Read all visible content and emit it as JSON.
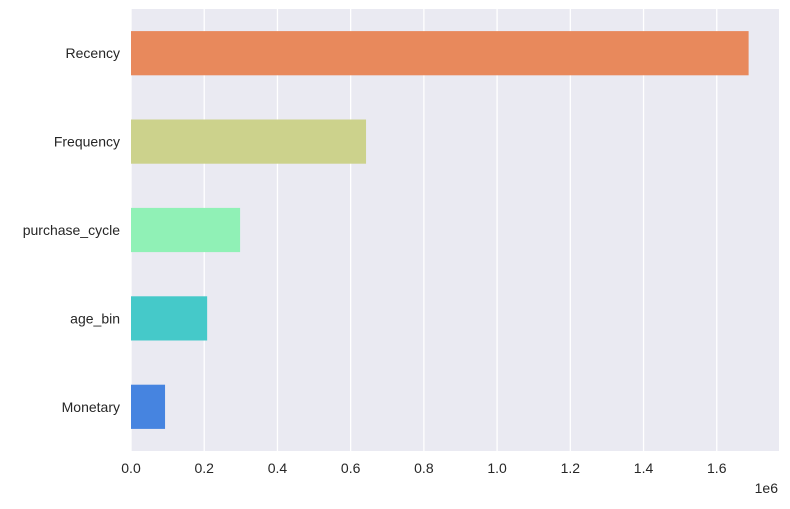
{
  "chart_data": {
    "type": "bar",
    "orientation": "horizontal",
    "title": "",
    "xlabel": "",
    "ylabel": "",
    "x_offset_label": "1e6",
    "categories": [
      "Recency",
      "Frequency",
      "purchase_cycle",
      "age_bin",
      "Monetary"
    ],
    "values": [
      1687000,
      642000,
      298000,
      208000,
      93000
    ],
    "colors": [
      "#E8895C",
      "#CCD28C",
      "#90F1B6",
      "#45C9C9",
      "#4684E0"
    ],
    "xlim": [
      0,
      1770000
    ],
    "x_ticks": [
      0,
      200000,
      400000,
      600000,
      800000,
      1000000,
      1200000,
      1400000,
      1600000
    ],
    "x_tick_labels": [
      "0.0",
      "0.2",
      "0.4",
      "0.6",
      "0.8",
      "1.0",
      "1.2",
      "1.4",
      "1.6"
    ],
    "grid": "vertical",
    "background": "#EAEAF2",
    "legend": "none"
  }
}
